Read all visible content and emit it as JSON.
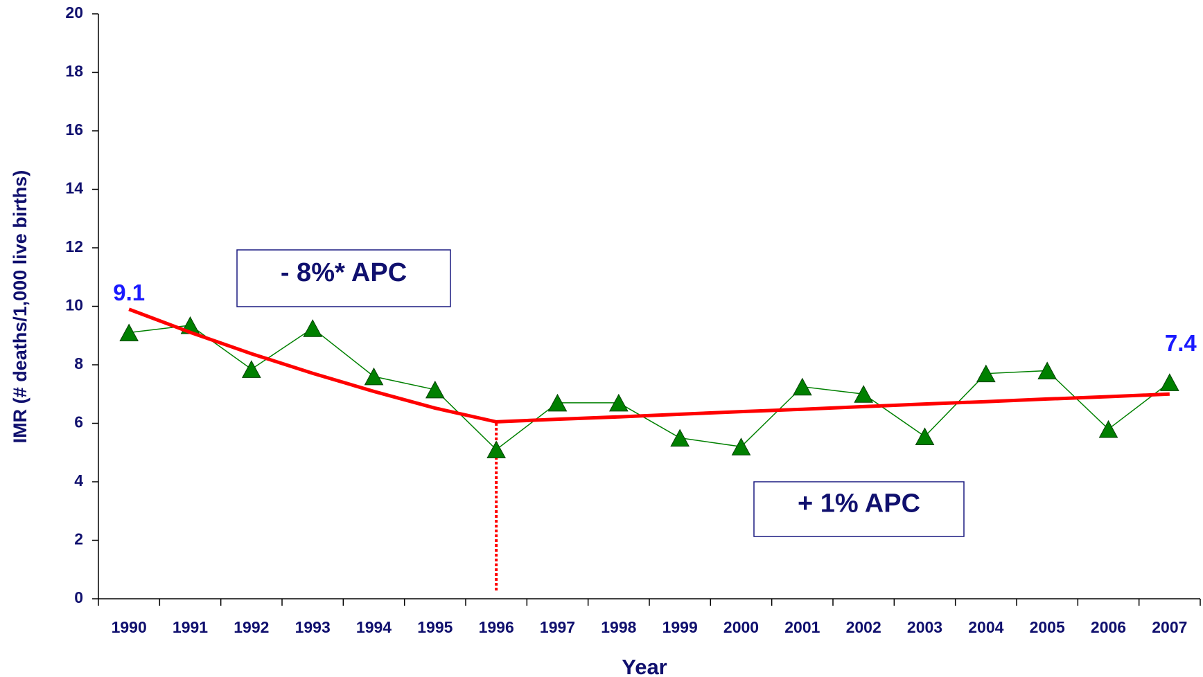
{
  "chart_data": {
    "type": "line",
    "x_label": "Year",
    "y_label": "IMR (# deaths/1,000 live births)",
    "categories": [
      "1990",
      "1991",
      "1992",
      "1993",
      "1994",
      "1995",
      "1996",
      "1997",
      "1998",
      "1999",
      "2000",
      "2001",
      "2002",
      "2003",
      "2004",
      "2005",
      "2006",
      "2007"
    ],
    "series": [
      {
        "color": "#008000",
        "marker": "triangle",
        "values": [
          9.1,
          9.35,
          7.85,
          9.25,
          7.6,
          7.15,
          5.1,
          6.7,
          6.7,
          5.5,
          5.2,
          7.25,
          7.0,
          5.55,
          7.7,
          7.8,
          5.8,
          7.4
        ],
        "value_labels": [
          "9.1",
          null,
          null,
          null,
          null,
          null,
          null,
          null,
          null,
          null,
          null,
          null,
          null,
          null,
          null,
          null,
          null,
          "7.4"
        ]
      },
      {
        "color": "#ff0000",
        "marker": "none",
        "values": [
          9.9,
          9.11,
          8.38,
          7.71,
          7.09,
          6.52,
          6.05,
          6.14,
          6.22,
          6.31,
          6.4,
          6.48,
          6.57,
          6.66,
          6.74,
          6.83,
          6.91,
          7.0
        ]
      }
    ],
    "annotations": [
      "- 8%* APC",
      "+ 1% APC"
    ],
    "ylim": [
      0,
      20
    ],
    "yticks": [
      0,
      2,
      4,
      6,
      8,
      10,
      12,
      14,
      16,
      18,
      20
    ],
    "grid": false
  }
}
